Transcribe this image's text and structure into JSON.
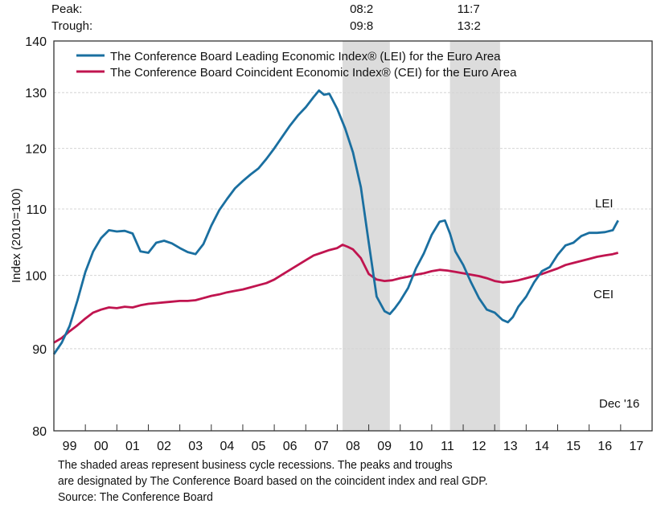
{
  "chart_data": {
    "type": "line",
    "title": "",
    "xlabel": "",
    "ylabel": "Index (2010=100)",
    "yscale": "log",
    "ylim": [
      80,
      140
    ],
    "yticks": [
      80,
      90,
      100,
      110,
      120,
      130,
      140
    ],
    "xlim": [
      1999.0,
      2018.0
    ],
    "xtick_labels": [
      "99",
      "00",
      "01",
      "02",
      "03",
      "04",
      "05",
      "06",
      "07",
      "08",
      "09",
      "10",
      "11",
      "12",
      "13",
      "14",
      "15",
      "16",
      "17"
    ],
    "grid": true,
    "legend": "top-left",
    "peak_label": "Peak:",
    "trough_label": "Trough:",
    "recessions": [
      {
        "peak": "08:2",
        "trough": "09:8",
        "start": 2008.17,
        "end": 2009.67
      },
      {
        "peak": "11:7",
        "trough": "13:2",
        "start": 2011.58,
        "end": 2013.17
      }
    ],
    "annotations": {
      "lei": "LEI",
      "cei": "CEI",
      "date": "Dec '16"
    },
    "series": [
      {
        "name": "The Conference Board Leading Economic Index® (LEI) for the Euro Area",
        "short": "LEI",
        "color": "#1a6fa0",
        "x": [
          1999.0,
          1999.25,
          1999.5,
          1999.75,
          2000.0,
          2000.25,
          2000.5,
          2000.75,
          2001.0,
          2001.25,
          2001.5,
          2001.75,
          2002.0,
          2002.25,
          2002.5,
          2002.75,
          2003.0,
          2003.25,
          2003.5,
          2003.75,
          2004.0,
          2004.25,
          2004.5,
          2004.75,
          2005.0,
          2005.25,
          2005.5,
          2005.75,
          2006.0,
          2006.25,
          2006.5,
          2006.75,
          2007.0,
          2007.25,
          2007.42,
          2007.58,
          2007.75,
          2008.0,
          2008.25,
          2008.5,
          2008.75,
          2009.0,
          2009.25,
          2009.5,
          2009.67,
          2009.83,
          2010.0,
          2010.25,
          2010.5,
          2010.75,
          2011.0,
          2011.25,
          2011.42,
          2011.58,
          2011.75,
          2012.0,
          2012.25,
          2012.5,
          2012.75,
          2013.0,
          2013.25,
          2013.42,
          2013.58,
          2013.75,
          2014.0,
          2014.25,
          2014.5,
          2014.75,
          2015.0,
          2015.25,
          2015.5,
          2015.75,
          2016.0,
          2016.25,
          2016.5,
          2016.75,
          2016.92
        ],
        "values": [
          89.3,
          90.8,
          93.0,
          96.5,
          100.5,
          103.5,
          105.5,
          106.7,
          106.5,
          106.6,
          106.2,
          103.5,
          103.3,
          104.8,
          105.1,
          104.7,
          104.0,
          103.4,
          103.1,
          104.6,
          107.4,
          109.8,
          111.6,
          113.3,
          114.5,
          115.6,
          116.6,
          118.2,
          120.0,
          122.0,
          124.0,
          125.8,
          127.3,
          129.2,
          130.4,
          129.6,
          129.8,
          127.0,
          123.5,
          119.3,
          113.5,
          104.8,
          97.0,
          95.0,
          94.6,
          95.4,
          96.4,
          98.2,
          101.0,
          103.2,
          106.0,
          108.0,
          108.2,
          106.2,
          103.5,
          101.5,
          99.0,
          96.8,
          95.2,
          94.8,
          93.8,
          93.5,
          94.2,
          95.6,
          97.0,
          99.0,
          100.6,
          101.2,
          103.0,
          104.4,
          104.8,
          105.8,
          106.3,
          106.3,
          106.4,
          106.7,
          108.2
        ]
      },
      {
        "name": "The Conference Board Coincident Economic Index® (CEI) for the Euro Area",
        "short": "CEI",
        "color": "#c0144f",
        "x": [
          1999.0,
          1999.25,
          1999.5,
          1999.75,
          2000.0,
          2000.25,
          2000.5,
          2000.75,
          2001.0,
          2001.25,
          2001.5,
          2001.75,
          2002.0,
          2002.25,
          2002.5,
          2002.75,
          2003.0,
          2003.25,
          2003.5,
          2003.75,
          2004.0,
          2004.25,
          2004.5,
          2004.75,
          2005.0,
          2005.25,
          2005.5,
          2005.75,
          2006.0,
          2006.25,
          2006.5,
          2006.75,
          2007.0,
          2007.25,
          2007.5,
          2007.75,
          2008.0,
          2008.17,
          2008.33,
          2008.5,
          2008.75,
          2009.0,
          2009.25,
          2009.5,
          2009.75,
          2010.0,
          2010.25,
          2010.5,
          2010.75,
          2011.0,
          2011.25,
          2011.5,
          2011.75,
          2012.0,
          2012.25,
          2012.5,
          2012.75,
          2013.0,
          2013.25,
          2013.5,
          2013.75,
          2014.0,
          2014.25,
          2014.5,
          2014.75,
          2015.0,
          2015.25,
          2015.5,
          2015.75,
          2016.0,
          2016.25,
          2016.5,
          2016.75,
          2016.92
        ],
        "values": [
          90.8,
          91.4,
          92.3,
          93.1,
          94.0,
          94.8,
          95.2,
          95.5,
          95.4,
          95.6,
          95.5,
          95.8,
          96.0,
          96.1,
          96.2,
          96.3,
          96.4,
          96.4,
          96.5,
          96.8,
          97.1,
          97.3,
          97.6,
          97.8,
          98.0,
          98.3,
          98.6,
          98.9,
          99.4,
          100.1,
          100.8,
          101.5,
          102.2,
          102.9,
          103.3,
          103.7,
          104.0,
          104.5,
          104.2,
          103.8,
          102.5,
          100.2,
          99.4,
          99.2,
          99.3,
          99.6,
          99.8,
          100.1,
          100.3,
          100.6,
          100.8,
          100.7,
          100.5,
          100.3,
          100.1,
          99.9,
          99.6,
          99.2,
          99.0,
          99.1,
          99.3,
          99.6,
          99.9,
          100.2,
          100.6,
          101.0,
          101.5,
          101.8,
          102.1,
          102.4,
          102.7,
          102.9,
          103.1,
          103.3
        ]
      }
    ]
  },
  "footnote": {
    "line1": "The shaded areas represent business cycle recessions. The peaks and troughs",
    "line2": "are designated by The Conference Board based on the coincident index and real GDP.",
    "line3": "Source: The Conference Board"
  }
}
